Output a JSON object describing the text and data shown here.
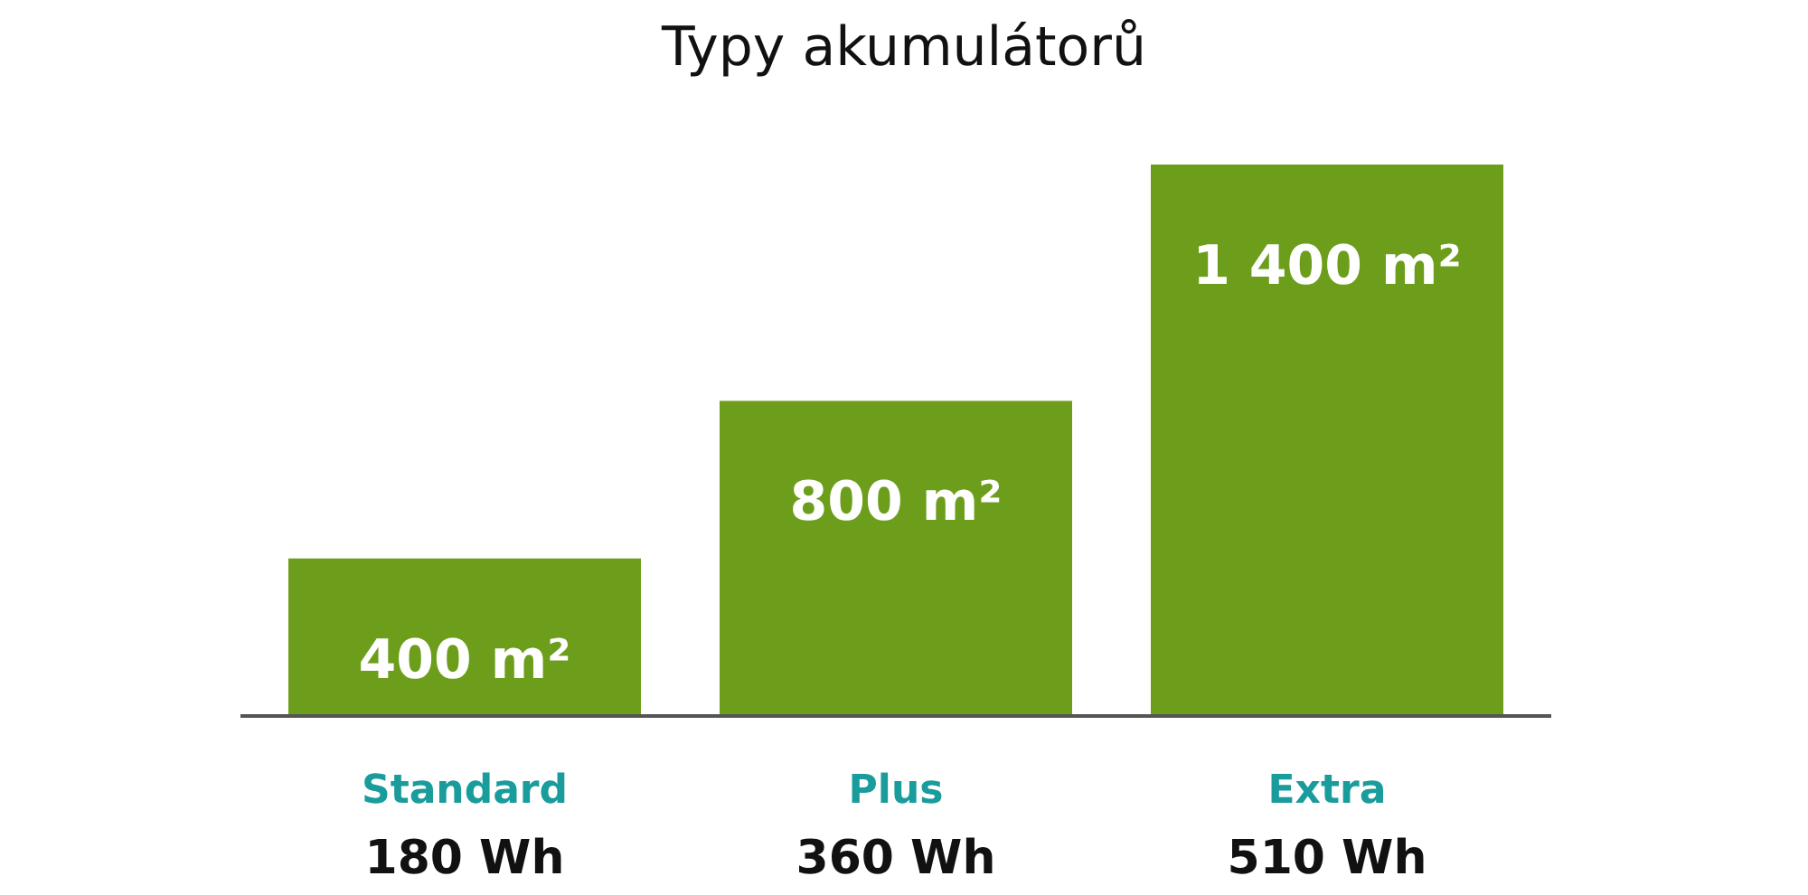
{
  "chart_data": {
    "type": "bar",
    "title": "Typy akumulátorů",
    "categories": [
      "Standard",
      "Plus",
      "Extra"
    ],
    "values": [
      400,
      800,
      1400
    ],
    "value_labels": [
      "400 m²",
      "800 m²",
      "1 400 m²"
    ],
    "color": "#6c9e1c",
    "annotations": [
      "180 Wh",
      "360 Wh",
      "510 Wh"
    ]
  }
}
